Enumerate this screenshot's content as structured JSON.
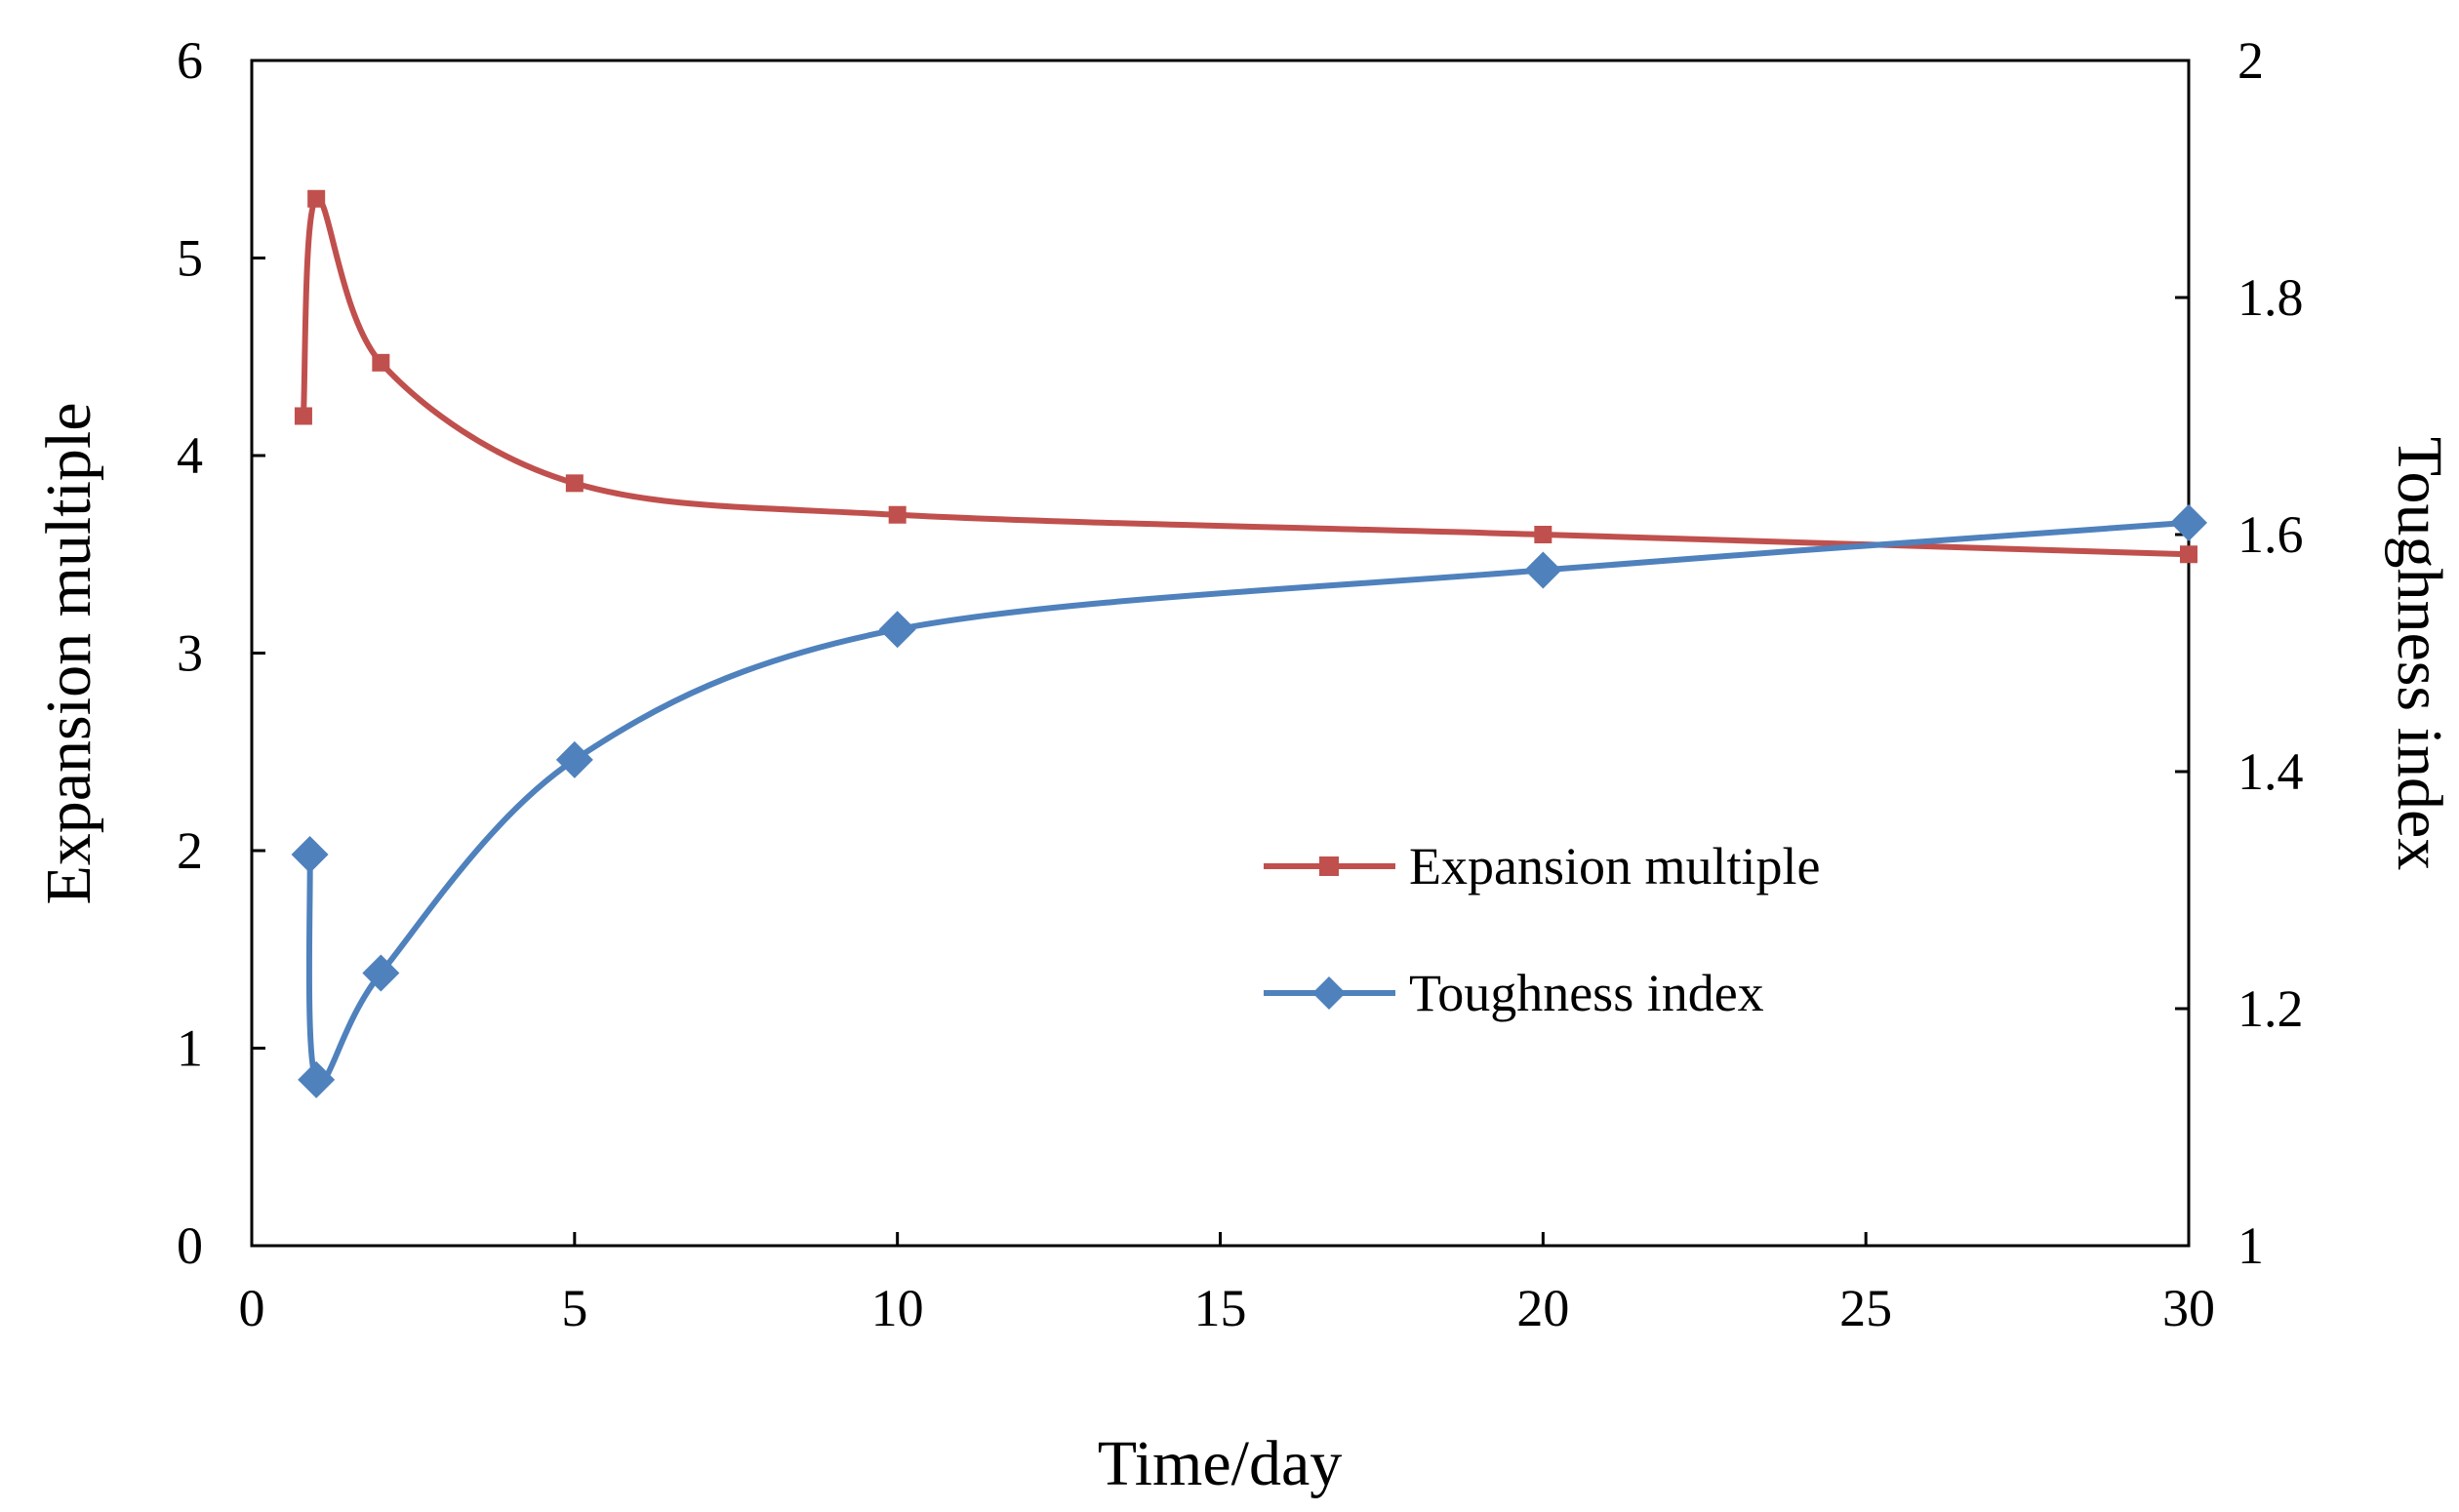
{
  "chart_data": {
    "type": "line",
    "title": "",
    "xlabel": "Time/day",
    "ylabel": "Expansion multiple",
    "y2label": "Toughness index",
    "xlim": [
      0,
      30
    ],
    "ylim": [
      0,
      6
    ],
    "y2lim": [
      1,
      2
    ],
    "xticks": [
      0,
      5,
      10,
      15,
      20,
      25,
      30
    ],
    "yticks": [
      0,
      1,
      2,
      3,
      4,
      5,
      6
    ],
    "y2ticks": [
      "1",
      "1.2",
      "1.4",
      "1.6",
      "1.8",
      "2"
    ],
    "legend_position": "center-right",
    "grid": false,
    "series": [
      {
        "name": "Expansion multiple",
        "axis": "left",
        "marker": "square",
        "color": "#C0504D",
        "x": [
          0.8,
          1,
          2,
          5,
          10,
          20,
          30
        ],
        "values": [
          4.2,
          5.3,
          4.47,
          3.86,
          3.7,
          3.6,
          3.5
        ]
      },
      {
        "name": "Toughness index",
        "axis": "right",
        "marker": "diamond",
        "color": "#4F81BD",
        "x": [
          0.9,
          1,
          2,
          5,
          10,
          20,
          30
        ],
        "values": [
          1.33,
          1.14,
          1.23,
          1.41,
          1.52,
          1.57,
          1.61
        ]
      }
    ]
  }
}
